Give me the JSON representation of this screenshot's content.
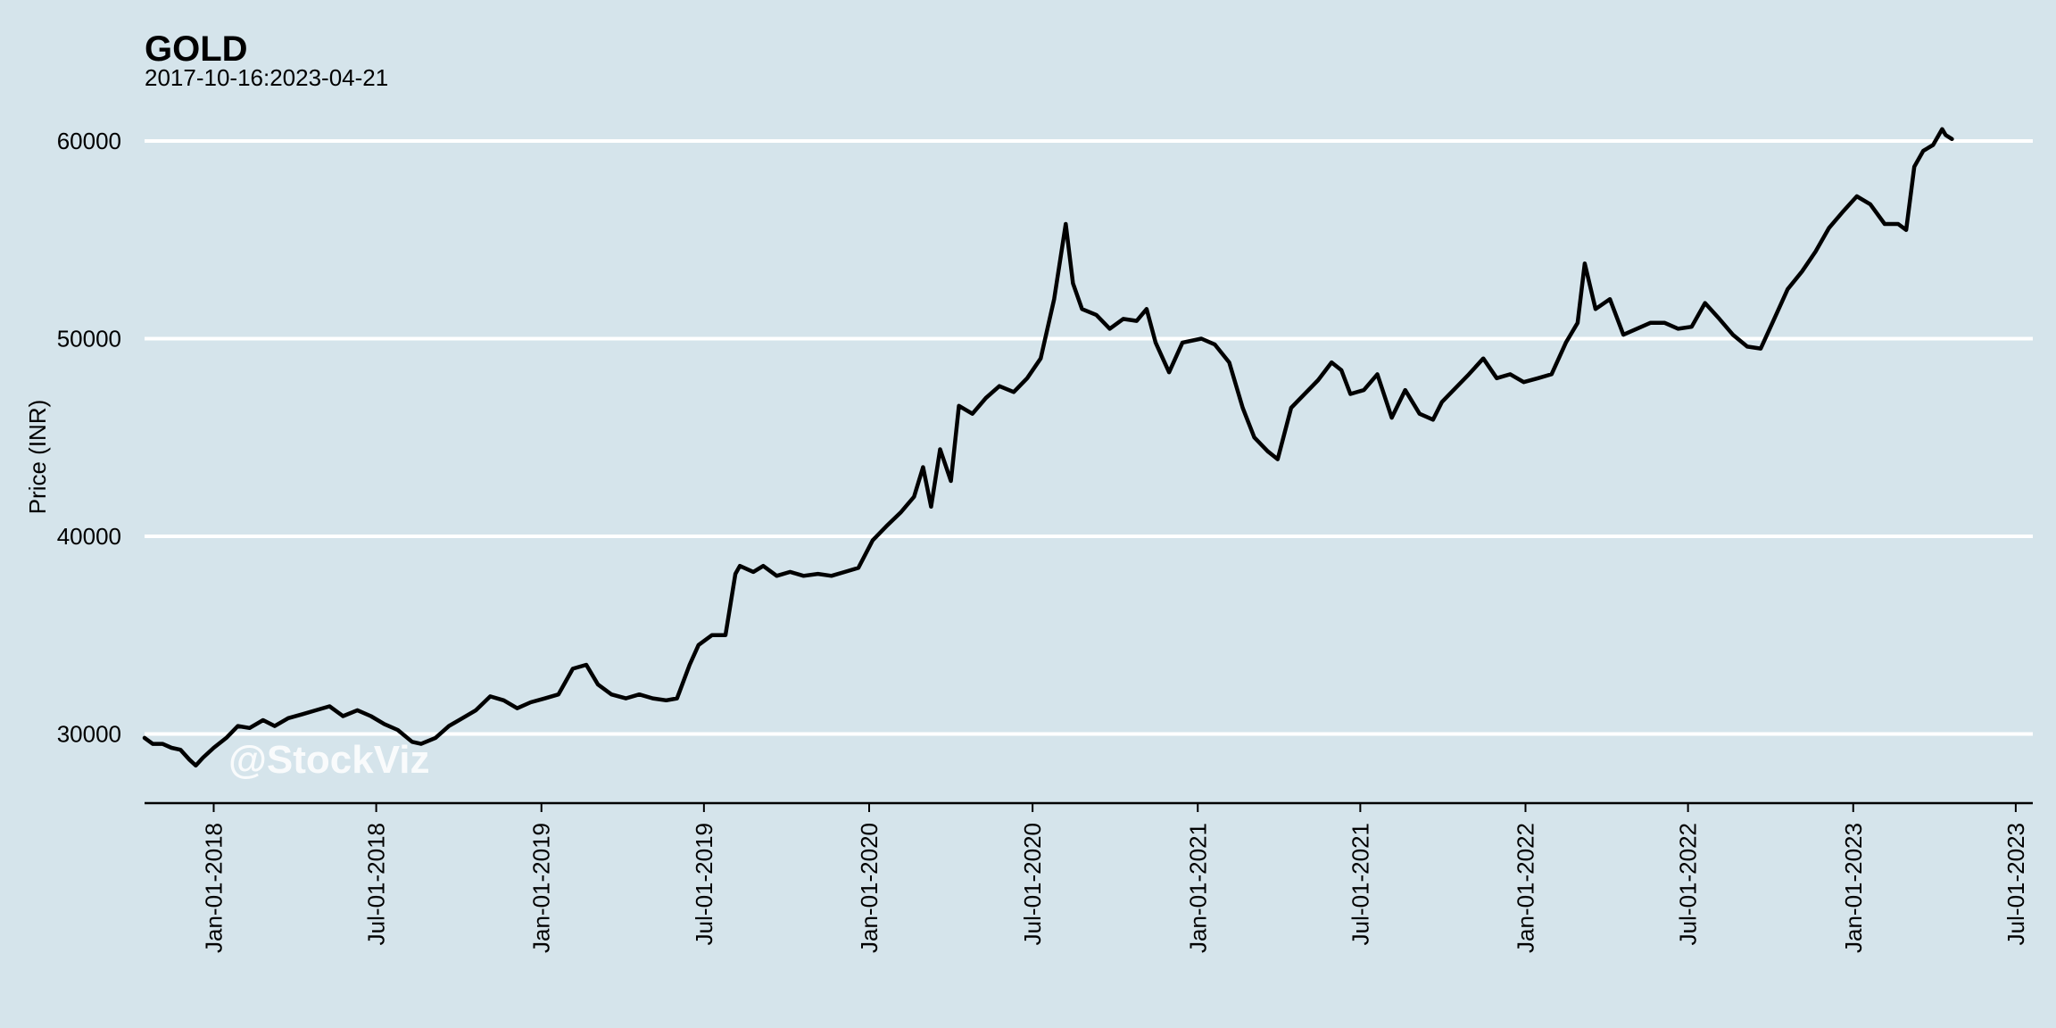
{
  "chart_data": {
    "type": "line",
    "title": "GOLD",
    "subtitle": "2017-10-16:2023-04-21",
    "xlabel": "",
    "ylabel": "Price (INR)",
    "watermark": "@StockViz",
    "ylim": [
      26500,
      62800
    ],
    "xlim": [
      "2017-10-16",
      "2023-07-20"
    ],
    "y_ticks": [
      30000,
      40000,
      50000,
      60000
    ],
    "x_ticks": [
      "2018-01-01",
      "2018-07-01",
      "2019-01-01",
      "2019-07-01",
      "2020-01-01",
      "2020-07-01",
      "2021-01-01",
      "2021-07-01",
      "2022-01-01",
      "2022-07-01",
      "2023-01-01",
      "2023-07-01"
    ],
    "x_tick_labels": [
      "Jan-01-2018",
      "Jul-01-2018",
      "Jan-01-2019",
      "Jul-01-2019",
      "Jan-01-2020",
      "Jul-01-2020",
      "Jan-01-2021",
      "Jul-01-2021",
      "Jan-01-2022",
      "Jul-01-2022",
      "Jan-01-2023",
      "Jul-01-2023"
    ],
    "grid": "horizontal",
    "colors": {
      "background": "#d5e4eb",
      "line": "#000000",
      "grid": "#ffffff"
    },
    "series": [
      {
        "x": [
          "2017-10-16",
          "2017-10-25",
          "2017-11-05",
          "2017-11-15",
          "2017-11-25",
          "2017-12-05",
          "2017-12-12",
          "2017-12-20",
          "2018-01-01",
          "2018-01-15",
          "2018-01-28",
          "2018-02-10",
          "2018-02-25",
          "2018-03-10",
          "2018-03-25",
          "2018-04-10",
          "2018-04-25",
          "2018-05-10",
          "2018-05-25",
          "2018-06-10",
          "2018-06-25",
          "2018-07-10",
          "2018-07-25",
          "2018-08-10",
          "2018-08-20",
          "2018-09-05",
          "2018-09-20",
          "2018-10-05",
          "2018-10-20",
          "2018-11-05",
          "2018-11-20",
          "2018-12-05",
          "2018-12-20",
          "2019-01-05",
          "2019-01-20",
          "2019-02-05",
          "2019-02-20",
          "2019-03-05",
          "2019-03-20",
          "2019-04-05",
          "2019-04-20",
          "2019-05-05",
          "2019-05-20",
          "2019-06-01",
          "2019-06-15",
          "2019-06-25",
          "2019-07-10",
          "2019-07-25",
          "2019-08-05",
          "2019-08-10",
          "2019-08-25",
          "2019-09-05",
          "2019-09-20",
          "2019-10-05",
          "2019-10-20",
          "2019-11-05",
          "2019-11-20",
          "2019-12-05",
          "2019-12-20",
          "2020-01-05",
          "2020-01-20",
          "2020-02-05",
          "2020-02-20",
          "2020-03-01",
          "2020-03-10",
          "2020-03-20",
          "2020-04-01",
          "2020-04-10",
          "2020-04-25",
          "2020-05-10",
          "2020-05-25",
          "2020-06-10",
          "2020-06-25",
          "2020-07-10",
          "2020-07-25",
          "2020-08-07",
          "2020-08-15",
          "2020-08-25",
          "2020-09-10",
          "2020-09-25",
          "2020-10-10",
          "2020-10-25",
          "2020-11-05",
          "2020-11-15",
          "2020-11-30",
          "2020-12-15",
          "2021-01-05",
          "2021-01-20",
          "2021-02-05",
          "2021-02-20",
          "2021-03-05",
          "2021-03-20",
          "2021-03-31",
          "2021-04-15",
          "2021-04-30",
          "2021-05-15",
          "2021-05-30",
          "2021-06-10",
          "2021-06-20",
          "2021-07-05",
          "2021-07-20",
          "2021-08-05",
          "2021-08-20",
          "2021-09-05",
          "2021-09-20",
          "2021-09-30",
          "2021-10-15",
          "2021-10-30",
          "2021-11-15",
          "2021-11-30",
          "2021-12-15",
          "2021-12-30",
          "2022-01-15",
          "2022-01-30",
          "2022-02-15",
          "2022-02-28",
          "2022-03-08",
          "2022-03-20",
          "2022-04-05",
          "2022-04-20",
          "2022-05-05",
          "2022-05-20",
          "2022-06-05",
          "2022-06-20",
          "2022-07-05",
          "2022-07-20",
          "2022-08-05",
          "2022-08-20",
          "2022-09-05",
          "2022-09-20",
          "2022-10-05",
          "2022-10-20",
          "2022-11-05",
          "2022-11-20",
          "2022-12-05",
          "2022-12-20",
          "2023-01-05",
          "2023-01-20",
          "2023-02-05",
          "2023-02-20",
          "2023-03-01",
          "2023-03-10",
          "2023-03-20",
          "2023-03-31",
          "2023-04-10",
          "2023-04-14",
          "2023-04-21"
        ],
        "y": [
          29800,
          29500,
          29500,
          29300,
          29200,
          28700,
          28400,
          28800,
          29300,
          29800,
          30400,
          30300,
          30700,
          30400,
          30800,
          31000,
          31200,
          31400,
          30900,
          31200,
          30900,
          30500,
          30200,
          29600,
          29500,
          29800,
          30400,
          30800,
          31200,
          31900,
          31700,
          31300,
          31600,
          31800,
          32000,
          33300,
          33500,
          32500,
          32000,
          31800,
          32000,
          31800,
          31700,
          31800,
          33500,
          34500,
          35000,
          35000,
          38100,
          38500,
          38200,
          38500,
          38000,
          38200,
          38000,
          38100,
          38000,
          38200,
          38400,
          39800,
          40500,
          41200,
          42000,
          43500,
          41500,
          44400,
          42800,
          46600,
          46200,
          47000,
          47600,
          47300,
          48000,
          49000,
          52000,
          55800,
          52800,
          51500,
          51200,
          50500,
          51000,
          50900,
          51500,
          49800,
          48300,
          49800,
          50000,
          49700,
          48800,
          46500,
          45000,
          44300,
          43900,
          46500,
          47200,
          47900,
          48800,
          48400,
          47200,
          47400,
          48200,
          46000,
          47400,
          46200,
          45900,
          46800,
          47500,
          48200,
          49000,
          48000,
          48200,
          47800,
          48000,
          48200,
          49800,
          50800,
          53800,
          51500,
          52000,
          50200,
          50500,
          50800,
          50800,
          50500,
          50600,
          51800,
          51000,
          50200,
          49600,
          49500,
          51000,
          52500,
          53400,
          54400,
          55600,
          56400,
          57200,
          56800,
          55800,
          55800,
          55500,
          58700,
          59500,
          59800,
          60600,
          60300,
          60100
        ]
      }
    ]
  }
}
